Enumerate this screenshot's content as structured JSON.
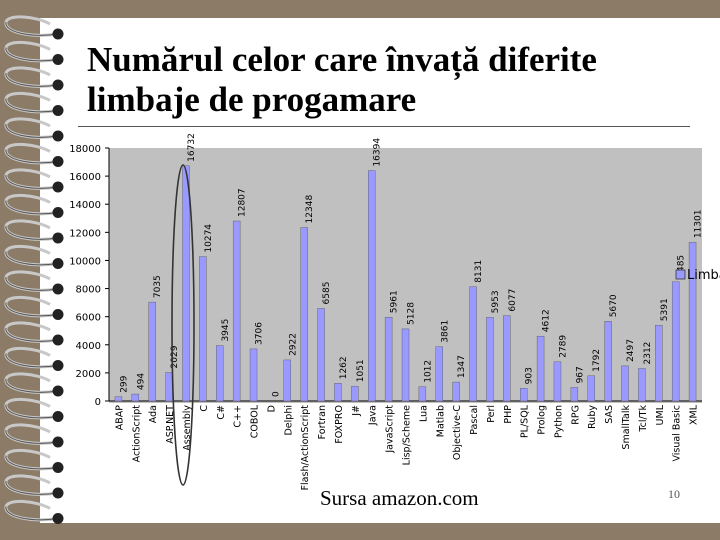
{
  "slide": {
    "title": "Numărul celor care învață diferite limbaje de progamare",
    "source": "Sursa amazon.com",
    "page_number": "10"
  },
  "colors": {
    "background": "#8c7b66",
    "bar": "#9999ff",
    "plot_area": "#c0c0c0",
    "highlight_ellipse": "#333333"
  },
  "chart_data": {
    "type": "bar",
    "categories": [
      "ABAP",
      "ActionScript",
      "Ada",
      "ASP.NET",
      "Assembly",
      "C",
      "C#",
      "C++",
      "COBOL",
      "D",
      "Delphi",
      "Flash/ActionScript",
      "Fortran",
      "FOXPRO",
      "J#",
      "Java",
      "JavaScript",
      "Lisp/Scheme",
      "Lua",
      "Matlab",
      "Objective-C",
      "Pascal",
      "Perl",
      "PHP",
      "PL/SQL",
      "Prolog",
      "Python",
      "RPG",
      "Ruby",
      "SAS",
      "SmallTalk",
      "Tcl/Tk",
      "UML",
      "Visual Basic",
      "XML"
    ],
    "series": [
      {
        "name": "Limba",
        "values": [
          299,
          494,
          7035,
          2029,
          16732,
          10274,
          3945,
          12807,
          3706,
          0,
          2922,
          12348,
          6585,
          1262,
          1051,
          16394,
          5961,
          5128,
          1012,
          3861,
          1347,
          8131,
          5953,
          6077,
          903,
          4612,
          2789,
          967,
          1792,
          5670,
          2497,
          2312,
          5391,
          8485,
          11301
        ]
      }
    ],
    "value_labels": [
      "299",
      "494",
      "7035",
      "2029",
      "16732",
      "10274",
      "3945",
      "12807",
      "3706",
      "0",
      "2922",
      "12348",
      "6585",
      "1262",
      "1051",
      "16394",
      "5961",
      "5128",
      "1012",
      "3861",
      "1347",
      "8131",
      "5953",
      "6077",
      "903",
      "4612",
      "2789",
      "967",
      "1792",
      "5670",
      "2497",
      "2312",
      "5391",
      "8485",
      "11301"
    ],
    "yticks": [
      "0",
      "2000",
      "4000",
      "6000",
      "8000",
      "10000",
      "12000",
      "14000",
      "16000",
      "18000"
    ],
    "ylim": [
      0,
      18000
    ],
    "grid": false,
    "legend_position": "right",
    "highlighted_category": "Assembly"
  }
}
